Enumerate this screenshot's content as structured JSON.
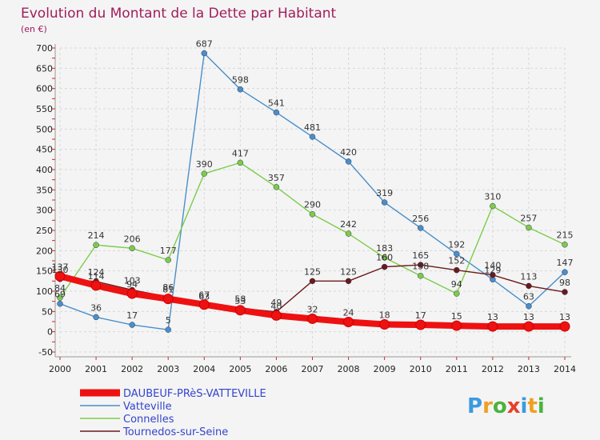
{
  "header": {
    "title": "Evolution du Montant de la Dette par Habitant",
    "unit": "(en €)"
  },
  "logo": {
    "letters": [
      "P",
      "r",
      "o",
      "x",
      "i",
      "t",
      "i"
    ],
    "colors": [
      "#3a9be0",
      "#f0a020",
      "#4ab33e",
      "#e8402a",
      "#3a9be0",
      "#f0a020",
      "#4ab33e"
    ]
  },
  "chart_data": {
    "type": "line",
    "title": "Evolution du Montant de la Dette par Habitant",
    "ylabel": "(en €)",
    "xlabel": "",
    "x": [
      "2000",
      "2001",
      "2002",
      "2003",
      "2004",
      "2005",
      "2006",
      "2007",
      "2008",
      "2009",
      "2010",
      "2011",
      "2012",
      "2013",
      "2014"
    ],
    "ylim": [
      -50,
      700
    ],
    "yticks": [
      -50,
      0,
      50,
      100,
      150,
      200,
      250,
      300,
      350,
      400,
      450,
      500,
      550,
      600,
      650,
      700
    ],
    "grid": true,
    "legend": "bottom-left",
    "series": [
      {
        "name": "DAUBEUF-PRèS-VATTEVILLE",
        "color": "#ee1111",
        "values": [
          137,
          114,
          94,
          81,
          67,
          53,
          40,
          32,
          24,
          18,
          17,
          15,
          13,
          13,
          13
        ]
      },
      {
        "name": "Vatteville",
        "color": "#4a8fc9",
        "values": [
          69,
          36,
          17,
          5,
          687,
          598,
          541,
          481,
          420,
          319,
          256,
          192,
          129,
          63,
          147
        ]
      },
      {
        "name": "Connelles",
        "color": "#7ccc4a",
        "values": [
          84,
          214,
          206,
          177,
          390,
          417,
          357,
          290,
          242,
          183,
          138,
          94,
          310,
          257,
          215
        ]
      },
      {
        "name": "Tournedos-sur-Seine",
        "color": "#6b1a1a",
        "values": [
          130,
          124,
          103,
          86,
          63,
          58,
          49,
          125,
          125,
          160,
          165,
          152,
          140,
          113,
          98
        ]
      }
    ]
  }
}
